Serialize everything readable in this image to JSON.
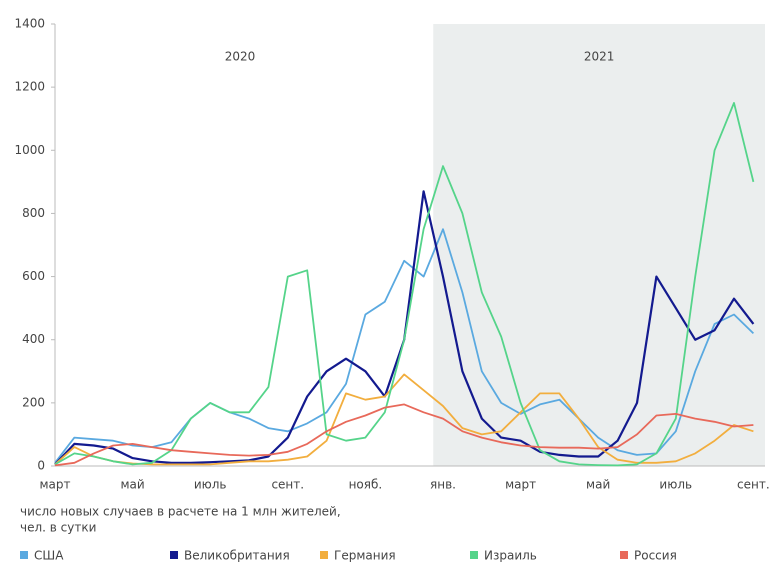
{
  "chart_data": {
    "type": "line",
    "categories": [
      "март",
      null,
      null,
      null,
      "май",
      null,
      null,
      null,
      "июль",
      null,
      null,
      null,
      "сент.",
      null,
      null,
      null,
      "нояб.",
      null,
      null,
      null,
      "янв.",
      null,
      null,
      null,
      "март",
      null,
      null,
      null,
      "май",
      null,
      null,
      null,
      "июль",
      null,
      null,
      null,
      "сент."
    ],
    "annotations": [
      "2020",
      "2021"
    ],
    "note": [
      "число новых случаев в расчете на 1 млн жителей,",
      "чел. в сутки"
    ],
    "series": [
      {
        "name": "США",
        "color": "#5aa9e0",
        "values": [
          10,
          90,
          85,
          80,
          65,
          60,
          75,
          150,
          200,
          170,
          150,
          120,
          110,
          135,
          170,
          260,
          480,
          520,
          650,
          600,
          750,
          550,
          300,
          200,
          165,
          195,
          210,
          150,
          90,
          50,
          35,
          40,
          110,
          300,
          450,
          480,
          420
        ]
      },
      {
        "name": "Великобритания",
        "color": "#131a8f",
        "values": [
          5,
          70,
          65,
          55,
          25,
          15,
          10,
          10,
          12,
          15,
          18,
          30,
          90,
          220,
          300,
          340,
          300,
          220,
          400,
          870,
          600,
          300,
          150,
          90,
          80,
          45,
          35,
          30,
          30,
          80,
          200,
          600,
          500,
          400,
          430,
          530,
          450
        ]
      },
      {
        "name": "Германия",
        "color": "#f2ae3e",
        "values": [
          5,
          60,
          30,
          15,
          8,
          5,
          5,
          5,
          5,
          10,
          15,
          15,
          20,
          30,
          80,
          230,
          210,
          220,
          290,
          240,
          190,
          120,
          100,
          110,
          170,
          230,
          230,
          150,
          60,
          20,
          10,
          10,
          15,
          40,
          80,
          130,
          110
        ]
      },
      {
        "name": "Израиль",
        "color": "#55d48a",
        "values": [
          5,
          40,
          30,
          15,
          5,
          10,
          50,
          150,
          200,
          170,
          170,
          250,
          600,
          620,
          100,
          80,
          90,
          170,
          400,
          750,
          950,
          800,
          550,
          410,
          200,
          50,
          15,
          5,
          3,
          2,
          5,
          40,
          150,
          600,
          1000,
          1150,
          900
        ]
      },
      {
        "name": "Россия",
        "color": "#e8695a",
        "values": [
          2,
          10,
          40,
          65,
          70,
          60,
          50,
          45,
          40,
          35,
          33,
          35,
          45,
          70,
          110,
          140,
          160,
          185,
          195,
          170,
          150,
          110,
          90,
          75,
          65,
          60,
          58,
          58,
          55,
          60,
          100,
          160,
          165,
          150,
          140,
          125,
          130
        ]
      }
    ],
    "ylim": [
      0,
      1400
    ],
    "yticks": [
      0,
      200,
      400,
      600,
      800,
      1000,
      1200,
      1400
    ]
  }
}
